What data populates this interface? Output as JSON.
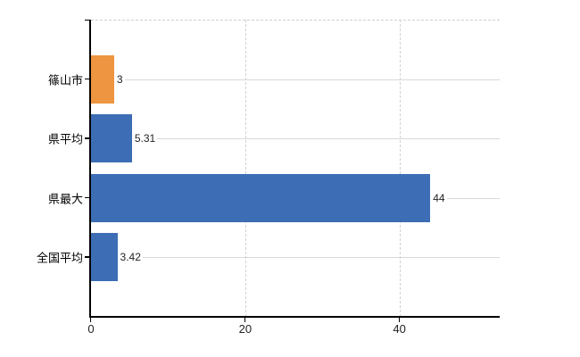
{
  "chart_data": {
    "type": "bar",
    "orientation": "horizontal",
    "title": "",
    "xlabel": "",
    "ylabel": "",
    "categories": [
      "篠山市",
      "県平均",
      "県最大",
      "全国平均"
    ],
    "values": [
      3,
      5.31,
      44,
      3.42
    ],
    "value_labels": [
      "3",
      "5.31",
      "44",
      "3.42"
    ],
    "bar_colors": [
      "#ed9540",
      "#3d6eb5",
      "#3d6eb5",
      "#3d6eb5"
    ],
    "xlim": [
      0,
      53
    ],
    "x_ticks": [
      0,
      20,
      40
    ],
    "x_tick_labels": [
      "0",
      "20",
      "40"
    ],
    "grid": "on",
    "gridline_style": "vertical dashed at ticks, horizontal solid at category centers, dashed top border",
    "legend": "none",
    "colors": {
      "orange": "#ed9540",
      "blue": "#3d6eb5",
      "axis": "#000000",
      "gridline": "#d5dbd2",
      "dashed_gridline": "#d2d2d2",
      "background": "#ffffff",
      "label_text": "#000000"
    }
  }
}
